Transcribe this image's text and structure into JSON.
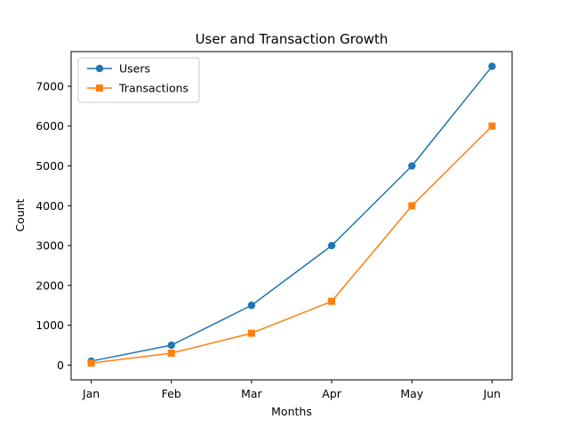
{
  "chart_data": {
    "type": "line",
    "title": "User and Transaction Growth",
    "xlabel": "Months",
    "ylabel": "Count",
    "categories": [
      "Jan",
      "Feb",
      "Mar",
      "Apr",
      "May",
      "Jun"
    ],
    "ylim": [
      -370,
      7870
    ],
    "yticks": [
      0,
      1000,
      2000,
      3000,
      4000,
      5000,
      6000,
      7000
    ],
    "grid": false,
    "legend_position": "upper-left",
    "series": [
      {
        "name": "Users",
        "values": [
          100,
          500,
          1500,
          3000,
          5000,
          7500
        ],
        "color": "#1f77b4",
        "marker": "circle"
      },
      {
        "name": "Transactions",
        "values": [
          50,
          300,
          800,
          1600,
          4000,
          6000
        ],
        "color": "#ff7f0e",
        "marker": "square"
      }
    ]
  }
}
